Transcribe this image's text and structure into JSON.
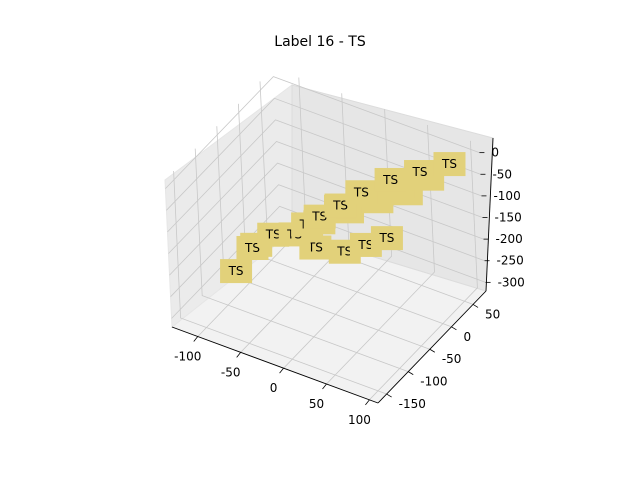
{
  "chart_data": {
    "type": "scatter",
    "title": "Label 16 - TS",
    "projection": "3d",
    "xlabel": "",
    "ylabel": "",
    "zlabel": "",
    "xlim": [
      -130,
      110
    ],
    "ylim": [
      -170,
      80
    ],
    "zlim": [
      -320,
      20
    ],
    "x_ticks": [
      -100,
      -50,
      0,
      50,
      100
    ],
    "y_ticks": [
      -150,
      -100,
      -50,
      0,
      50
    ],
    "z_ticks": [
      -300,
      -250,
      -200,
      -150,
      -100,
      -50,
      0
    ],
    "grid": true,
    "marker_color": "#e2d17a",
    "marker_label": "TS",
    "points": [
      {
        "x": -110,
        "y": -60,
        "z": -290
      },
      {
        "x": -100,
        "y": -40,
        "z": -250
      },
      {
        "x": -90,
        "y": -50,
        "z": -225
      },
      {
        "x": -80,
        "y": -30,
        "z": -215
      },
      {
        "x": -60,
        "y": -20,
        "z": -210
      },
      {
        "x": -50,
        "y": -10,
        "z": -190
      },
      {
        "x": -40,
        "y": 0,
        "z": -175
      },
      {
        "x": -30,
        "y": -20,
        "z": -160
      },
      {
        "x": -20,
        "y": 10,
        "z": -145
      },
      {
        "x": -10,
        "y": -10,
        "z": -120
      },
      {
        "x": 0,
        "y": 20,
        "z": -110
      },
      {
        "x": 10,
        "y": -30,
        "z": -95
      },
      {
        "x": 20,
        "y": 0,
        "z": -80
      },
      {
        "x": 30,
        "y": 30,
        "z": -70
      },
      {
        "x": 40,
        "y": -20,
        "z": -60
      },
      {
        "x": 50,
        "y": 10,
        "z": -50
      },
      {
        "x": 60,
        "y": 40,
        "z": -40
      },
      {
        "x": 70,
        "y": -10,
        "z": -30
      },
      {
        "x": 80,
        "y": 20,
        "z": -20
      },
      {
        "x": 90,
        "y": 50,
        "z": -10
      },
      {
        "x": 20,
        "y": -60,
        "z": -150
      },
      {
        "x": 40,
        "y": -50,
        "z": -130
      },
      {
        "x": 60,
        "y": -40,
        "z": -110
      },
      {
        "x": -20,
        "y": -50,
        "z": -180
      }
    ]
  }
}
